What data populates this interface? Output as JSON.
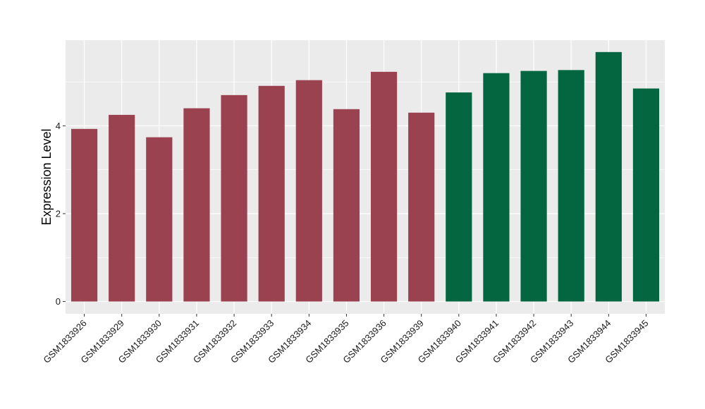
{
  "chart_data": {
    "type": "bar",
    "title": "",
    "xlabel": "",
    "ylabel": "Expression Level",
    "ylim": [
      -0.28,
      5.95
    ],
    "yticks": [
      0,
      2,
      4
    ],
    "grid": true,
    "legend": "none",
    "categories": [
      "GSM1833926",
      "GSM1833929",
      "GSM1833930",
      "GSM1833931",
      "GSM1833932",
      "GSM1833933",
      "GSM1833934",
      "GSM1833935",
      "GSM1833936",
      "GSM1833939",
      "GSM1833940",
      "GSM1833941",
      "GSM1833942",
      "GSM1833943",
      "GSM1833944",
      "GSM1833945"
    ],
    "values": [
      3.93,
      4.25,
      3.74,
      4.4,
      4.7,
      4.91,
      5.04,
      4.38,
      5.23,
      4.3,
      4.76,
      5.2,
      5.25,
      5.27,
      5.68,
      4.85
    ],
    "bar_colors": [
      "#9b4250",
      "#9b4250",
      "#9b4250",
      "#9b4250",
      "#9b4250",
      "#9b4250",
      "#9b4250",
      "#9b4250",
      "#9b4250",
      "#9b4250",
      "#036640",
      "#036640",
      "#036640",
      "#036640",
      "#036640",
      "#036640"
    ],
    "panel_background": "#ebebeb",
    "grid_color": "#ffffff"
  }
}
